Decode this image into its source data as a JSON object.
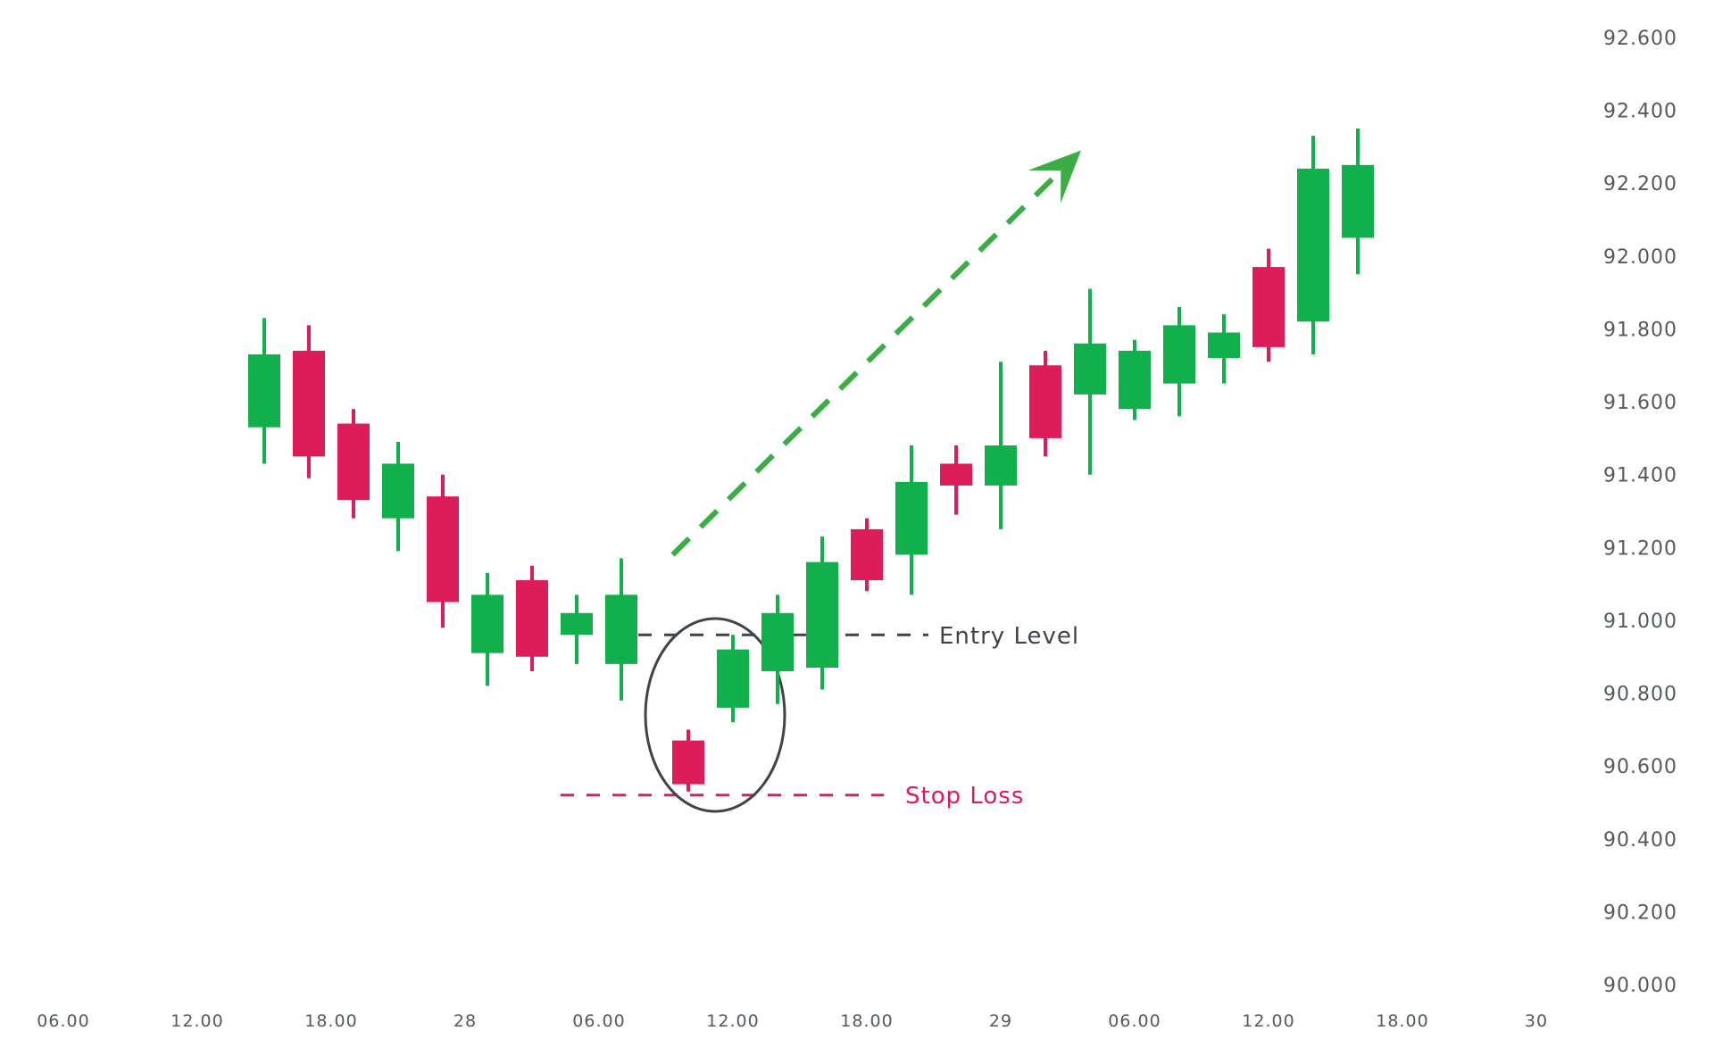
{
  "chart_data": {
    "type": "candlestick",
    "colors": {
      "up": "#12b04c",
      "down": "#dc1d5a",
      "arrow": "#3aae44",
      "entry_line": "#3f4448",
      "circle": "#3f4448"
    },
    "y_axis": {
      "ylim": [
        90.0,
        92.6
      ],
      "ticks": [
        "92.600",
        "92.400",
        "92.200",
        "92.000",
        "91.800",
        "91.600",
        "91.400",
        "91.200",
        "91.000",
        "90.800",
        "90.600",
        "90.400",
        "90.200",
        "90.000"
      ],
      "position": "right"
    },
    "x_axis": {
      "ticks": [
        "06.00",
        "12.00",
        "18.00",
        "28",
        "06.00",
        "12.00",
        "18.00",
        "29",
        "06.00",
        "12.00",
        "18.00",
        "30"
      ],
      "hours_per_tick": 6
    },
    "grid": false,
    "candles": [
      {
        "t": 9,
        "open": 91.53,
        "high": 91.83,
        "low": 91.43,
        "close": 91.73
      },
      {
        "t": 11,
        "open": 91.74,
        "high": 91.81,
        "low": 91.39,
        "close": 91.45
      },
      {
        "t": 13,
        "open": 91.54,
        "high": 91.58,
        "low": 91.28,
        "close": 91.33
      },
      {
        "t": 15,
        "open": 91.28,
        "high": 91.49,
        "low": 91.19,
        "close": 91.43
      },
      {
        "t": 17,
        "open": 91.34,
        "high": 91.4,
        "low": 90.98,
        "close": 91.05
      },
      {
        "t": 19,
        "open": 90.91,
        "high": 91.13,
        "low": 90.82,
        "close": 91.07
      },
      {
        "t": 21,
        "open": 91.11,
        "high": 91.15,
        "low": 90.86,
        "close": 90.9
      },
      {
        "t": 23,
        "open": 90.96,
        "high": 91.07,
        "low": 90.88,
        "close": 91.02
      },
      {
        "t": 25,
        "open": 90.88,
        "high": 91.17,
        "low": 90.78,
        "close": 91.07
      },
      {
        "t": 28,
        "open": 90.67,
        "high": 90.7,
        "low": 90.53,
        "close": 90.55
      },
      {
        "t": 30,
        "open": 90.76,
        "high": 90.96,
        "low": 90.72,
        "close": 90.92
      },
      {
        "t": 32,
        "open": 90.86,
        "high": 91.07,
        "low": 90.77,
        "close": 91.02
      },
      {
        "t": 34,
        "open": 90.87,
        "high": 91.23,
        "low": 90.81,
        "close": 91.16
      },
      {
        "t": 36,
        "open": 91.25,
        "high": 91.28,
        "low": 91.08,
        "close": 91.11
      },
      {
        "t": 38,
        "open": 91.18,
        "high": 91.48,
        "low": 91.07,
        "close": 91.38
      },
      {
        "t": 40,
        "open": 91.43,
        "high": 91.48,
        "low": 91.29,
        "close": 91.37
      },
      {
        "t": 42,
        "open": 91.37,
        "high": 91.71,
        "low": 91.25,
        "close": 91.48
      },
      {
        "t": 44,
        "open": 91.7,
        "high": 91.74,
        "low": 91.45,
        "close": 91.5
      },
      {
        "t": 46,
        "open": 91.62,
        "high": 91.91,
        "low": 91.4,
        "close": 91.76
      },
      {
        "t": 48,
        "open": 91.58,
        "high": 91.77,
        "low": 91.55,
        "close": 91.74
      },
      {
        "t": 50,
        "open": 91.65,
        "high": 91.86,
        "low": 91.56,
        "close": 91.81
      },
      {
        "t": 52,
        "open": 91.72,
        "high": 91.84,
        "low": 91.65,
        "close": 91.79
      },
      {
        "t": 54,
        "open": 91.97,
        "high": 92.02,
        "low": 91.71,
        "close": 91.75
      },
      {
        "t": 56,
        "open": 91.82,
        "high": 92.33,
        "low": 91.73,
        "close": 92.24
      },
      {
        "t": 58,
        "open": 92.05,
        "high": 92.35,
        "low": 91.95,
        "close": 92.25
      }
    ],
    "annotations": {
      "entry_label": "Entry Level",
      "entry_price": 90.96,
      "stop_label": "Stop Loss",
      "stop_price": 90.52,
      "arrow": {
        "from": {
          "t": 27.3,
          "price": 91.18
        },
        "to": {
          "t": 45.6,
          "price": 92.29
        }
      },
      "circle": {
        "t": 29.2,
        "price": 90.74
      }
    }
  }
}
